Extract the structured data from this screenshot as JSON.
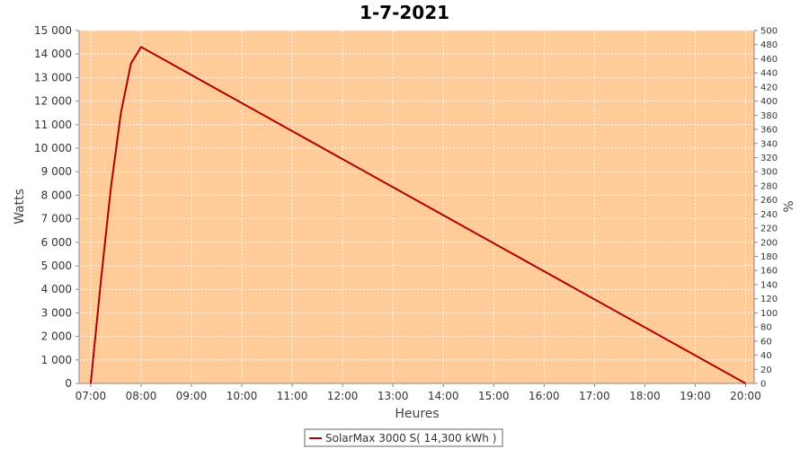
{
  "chart_data": {
    "type": "line",
    "title": "1-7-2021",
    "xlabel": "Heures",
    "ylabel": "Watts",
    "y2label": "%",
    "x_ticks": [
      "07:00",
      "08:00",
      "09:00",
      "10:00",
      "11:00",
      "12:00",
      "13:00",
      "14:00",
      "15:00",
      "16:00",
      "17:00",
      "18:00",
      "19:00",
      "20:00"
    ],
    "y_ticks": [
      "0",
      "1 000",
      "2 000",
      "3 000",
      "4 000",
      "5 000",
      "6 000",
      "7 000",
      "8 000",
      "9 000",
      "10 000",
      "11 000",
      "12 000",
      "13 000",
      "14 000",
      "15 000"
    ],
    "y2_ticks": [
      "0",
      "20",
      "40",
      "60",
      "80",
      "100",
      "120",
      "140",
      "160",
      "180",
      "200",
      "220",
      "240",
      "260",
      "280",
      "300",
      "320",
      "340",
      "360",
      "380",
      "400",
      "420",
      "440",
      "460",
      "480",
      "500"
    ],
    "xlim_hours": [
      6.77,
      20.17
    ],
    "ylim": [
      0,
      15000
    ],
    "y2lim": [
      0,
      500
    ],
    "grid": true,
    "legend_position": "bottom-center",
    "colors": {
      "plot_bg": "#ffcc99",
      "line": "#b00000",
      "grid": "#ffffff"
    },
    "series": [
      {
        "name": "SolarMax 3000 S( 14,300 kWh )",
        "x_hours": [
          7.0,
          7.2,
          7.4,
          7.6,
          7.8,
          8.0,
          20.0
        ],
        "y": [
          0,
          4300,
          8300,
          11500,
          13600,
          14300,
          0
        ]
      }
    ]
  }
}
